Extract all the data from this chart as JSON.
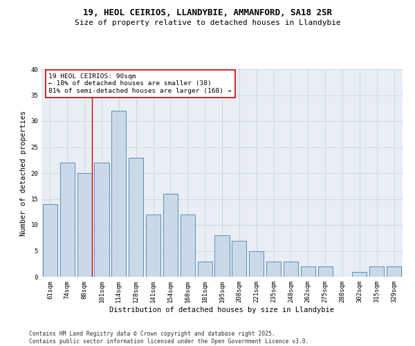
{
  "title1": "19, HEOL CEIRIOS, LLANDYBIE, AMMANFORD, SA18 2SR",
  "title2": "Size of property relative to detached houses in Llandybie",
  "xlabel": "Distribution of detached houses by size in Llandybie",
  "ylabel": "Number of detached properties",
  "categories": [
    "61sqm",
    "74sqm",
    "88sqm",
    "101sqm",
    "114sqm",
    "128sqm",
    "141sqm",
    "154sqm",
    "168sqm",
    "181sqm",
    "195sqm",
    "208sqm",
    "221sqm",
    "235sqm",
    "248sqm",
    "262sqm",
    "275sqm",
    "288sqm",
    "302sqm",
    "315sqm",
    "329sqm"
  ],
  "values": [
    14,
    22,
    20,
    22,
    32,
    23,
    12,
    16,
    12,
    3,
    8,
    7,
    5,
    3,
    3,
    2,
    2,
    0,
    1,
    2,
    2
  ],
  "bar_color": "#c9d9e8",
  "bar_edge_color": "#5b8db8",
  "vline_color": "#cc0000",
  "vline_x_index": 2,
  "annotation_box_text": "19 HEOL CEIRIOS: 90sqm\n← 18% of detached houses are smaller (38)\n81% of semi-detached houses are larger (168) →",
  "annotation_box_color": "#cc0000",
  "annotation_box_fill": "#ffffff",
  "ylim": [
    0,
    40
  ],
  "yticks": [
    0,
    5,
    10,
    15,
    20,
    25,
    30,
    35,
    40
  ],
  "grid_color": "#c8d4e0",
  "background_color": "#e8eef4",
  "footer_text": "Contains HM Land Registry data © Crown copyright and database right 2025.\nContains public sector information licensed under the Open Government Licence v3.0.",
  "title_fontsize": 9,
  "subtitle_fontsize": 8,
  "axis_label_fontsize": 7.5,
  "tick_fontsize": 6.5,
  "annotation_fontsize": 6.8,
  "footer_fontsize": 5.8
}
